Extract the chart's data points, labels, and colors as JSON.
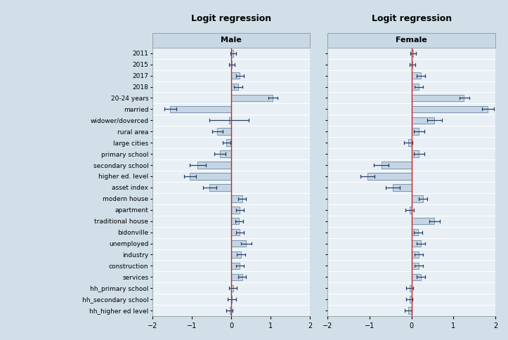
{
  "labels": [
    "2011",
    "2015",
    "2017",
    "2018",
    "20-24 years",
    "married",
    "widower/doverced",
    "rural area",
    "large cities",
    "primary school",
    "secondary school",
    "higher ed. level",
    "asset index",
    "modern house",
    "apartment",
    "traditional house",
    "bidonville",
    "unemployed",
    "industry",
    "construction",
    "services",
    "hh_primary school",
    "hh_secondary school",
    "hh_higher ed level"
  ],
  "male": {
    "coef": [
      0.05,
      0.02,
      0.22,
      0.18,
      1.05,
      -1.55,
      -0.05,
      -0.35,
      -0.12,
      -0.28,
      -0.85,
      -1.05,
      -0.55,
      0.28,
      0.22,
      0.2,
      0.22,
      0.38,
      0.25,
      0.22,
      0.28,
      0.05,
      0.02,
      -0.04
    ],
    "ci_lo": [
      -0.02,
      -0.05,
      0.12,
      0.08,
      0.95,
      -1.7,
      -0.55,
      -0.48,
      -0.22,
      -0.42,
      -1.05,
      -1.2,
      -0.72,
      0.18,
      0.12,
      0.1,
      0.12,
      0.25,
      0.15,
      0.12,
      0.18,
      -0.05,
      -0.08,
      -0.12
    ],
    "ci_hi": [
      0.12,
      0.09,
      0.32,
      0.28,
      1.18,
      -1.4,
      0.45,
      -0.22,
      -0.02,
      -0.14,
      -0.65,
      -0.9,
      -0.38,
      0.38,
      0.32,
      0.3,
      0.32,
      0.51,
      0.35,
      0.32,
      0.38,
      0.15,
      0.12,
      0.04
    ]
  },
  "female": {
    "coef": [
      0.04,
      0.02,
      0.22,
      0.18,
      1.25,
      1.82,
      0.55,
      0.18,
      -0.08,
      0.18,
      -0.72,
      -1.05,
      -0.45,
      0.28,
      -0.04,
      0.55,
      0.15,
      0.22,
      0.18,
      0.18,
      0.22,
      -0.04,
      -0.05,
      -0.08
    ],
    "ci_lo": [
      -0.03,
      -0.05,
      0.12,
      0.08,
      1.15,
      1.68,
      0.38,
      0.05,
      -0.18,
      0.05,
      -0.9,
      -1.22,
      -0.62,
      0.18,
      -0.14,
      0.42,
      0.05,
      0.12,
      0.08,
      0.08,
      0.12,
      -0.12,
      -0.12,
      -0.16
    ],
    "ci_hi": [
      0.11,
      0.09,
      0.32,
      0.28,
      1.38,
      1.96,
      0.72,
      0.31,
      0.02,
      0.31,
      -0.54,
      -0.88,
      -0.28,
      0.38,
      0.06,
      0.68,
      0.25,
      0.32,
      0.28,
      0.28,
      0.32,
      0.04,
      0.02,
      0.0
    ]
  },
  "bar_color": "#c5d5e4",
  "bar_edge_color": "#5a7898",
  "error_color": "#2a4060",
  "ref_line_color": "#cc2222",
  "background_color": "#d0dfe8",
  "panel_background": "#e8f0f6",
  "header_background": "#c8d8e5",
  "grid_color": "#ffffff",
  "title": "Logit regression",
  "subtitle_left": "Male",
  "subtitle_right": "Female",
  "xlim": [
    -2,
    2
  ],
  "xticks": [
    -2,
    -1,
    0,
    1,
    2
  ],
  "title_fontsize": 9,
  "subtitle_fontsize": 8,
  "label_fontsize": 6.5,
  "tick_fontsize": 7
}
